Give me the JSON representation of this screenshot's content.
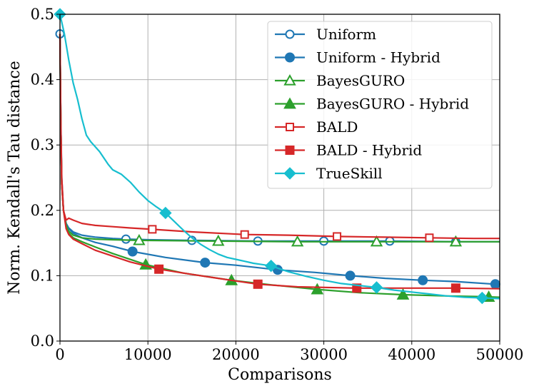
{
  "chart_data": {
    "type": "line",
    "xlabel": "Comparisons",
    "ylabel": "Norm. Kendall's Tau distance",
    "xlim": [
      0,
      50000
    ],
    "ylim": [
      0.0,
      0.5
    ],
    "xticks": [
      0,
      10000,
      20000,
      30000,
      40000,
      50000
    ],
    "xtick_labels": [
      "0",
      "10000",
      "20000",
      "30000",
      "40000",
      "50000"
    ],
    "yticks": [
      0.0,
      0.1,
      0.2,
      0.3,
      0.4,
      0.5
    ],
    "ytick_labels": [
      "0.0",
      "0.1",
      "0.2",
      "0.3",
      "0.4",
      "0.5"
    ],
    "grid": true,
    "legend_position": "top-right",
    "series": [
      {
        "name": "Uniform",
        "color": "#1f77b4",
        "marker": "circle-open",
        "points": [
          [
            0,
            0.47
          ],
          [
            100,
            0.34
          ],
          [
            200,
            0.25
          ],
          [
            400,
            0.2
          ],
          [
            700,
            0.18
          ],
          [
            1000,
            0.173
          ],
          [
            1500,
            0.167
          ],
          [
            2500,
            0.162
          ],
          [
            4000,
            0.159
          ],
          [
            6000,
            0.157
          ],
          [
            7500,
            0.156
          ],
          [
            10000,
            0.155
          ],
          [
            15000,
            0.154
          ],
          [
            22500,
            0.153
          ],
          [
            30000,
            0.153
          ],
          [
            37500,
            0.153
          ],
          [
            45000,
            0.152
          ],
          [
            50000,
            0.152
          ]
        ],
        "markers_x": [
          0,
          7500,
          15000,
          22500,
          30000,
          37500,
          45000
        ]
      },
      {
        "name": "Uniform - Hybrid",
        "color": "#1f77b4",
        "marker": "circle-filled",
        "points": [
          [
            0,
            0.47
          ],
          [
            100,
            0.33
          ],
          [
            200,
            0.24
          ],
          [
            400,
            0.2
          ],
          [
            700,
            0.18
          ],
          [
            1000,
            0.172
          ],
          [
            1500,
            0.165
          ],
          [
            2500,
            0.158
          ],
          [
            4000,
            0.151
          ],
          [
            6000,
            0.145
          ],
          [
            8250,
            0.137
          ],
          [
            12000,
            0.128
          ],
          [
            16500,
            0.12
          ],
          [
            20000,
            0.116
          ],
          [
            24750,
            0.109
          ],
          [
            29000,
            0.105
          ],
          [
            33000,
            0.1
          ],
          [
            37000,
            0.096
          ],
          [
            41250,
            0.093
          ],
          [
            45000,
            0.091
          ],
          [
            49500,
            0.087
          ],
          [
            50000,
            0.086
          ]
        ],
        "markers_x": [
          8250,
          16500,
          24750,
          33000,
          41250,
          49500
        ]
      },
      {
        "name": "BayesGURO",
        "color": "#2ca02c",
        "marker": "triangle-open",
        "points": [
          [
            0,
            0.47
          ],
          [
            100,
            0.33
          ],
          [
            200,
            0.24
          ],
          [
            400,
            0.2
          ],
          [
            700,
            0.178
          ],
          [
            1000,
            0.168
          ],
          [
            1500,
            0.162
          ],
          [
            2500,
            0.158
          ],
          [
            4000,
            0.156
          ],
          [
            6000,
            0.155
          ],
          [
            9000,
            0.154
          ],
          [
            18000,
            0.153
          ],
          [
            27000,
            0.152
          ],
          [
            36000,
            0.152
          ],
          [
            45000,
            0.152
          ],
          [
            50000,
            0.152
          ]
        ],
        "markers_x": [
          9000,
          18000,
          27000,
          36000,
          45000
        ]
      },
      {
        "name": "BayesGURO - Hybrid",
        "color": "#2ca02c",
        "marker": "triangle-filled",
        "points": [
          [
            0,
            0.47
          ],
          [
            100,
            0.33
          ],
          [
            200,
            0.24
          ],
          [
            400,
            0.2
          ],
          [
            700,
            0.175
          ],
          [
            1000,
            0.165
          ],
          [
            1500,
            0.158
          ],
          [
            2500,
            0.152
          ],
          [
            4000,
            0.144
          ],
          [
            6000,
            0.134
          ],
          [
            9750,
            0.117
          ],
          [
            14000,
            0.104
          ],
          [
            19500,
            0.093
          ],
          [
            24000,
            0.086
          ],
          [
            29250,
            0.079
          ],
          [
            34000,
            0.074
          ],
          [
            39000,
            0.071
          ],
          [
            44000,
            0.069
          ],
          [
            48000,
            0.068
          ],
          [
            50000,
            0.067
          ]
        ],
        "markers_x": [
          9750,
          19500,
          29250,
          39000,
          48750
        ]
      },
      {
        "name": "BALD",
        "color": "#d62728",
        "marker": "square-open",
        "points": [
          [
            0,
            0.47
          ],
          [
            100,
            0.33
          ],
          [
            200,
            0.25
          ],
          [
            400,
            0.2
          ],
          [
            700,
            0.185
          ],
          [
            1000,
            0.188
          ],
          [
            1500,
            0.185
          ],
          [
            2500,
            0.18
          ],
          [
            4000,
            0.177
          ],
          [
            6000,
            0.175
          ],
          [
            8000,
            0.173
          ],
          [
            10500,
            0.171
          ],
          [
            15000,
            0.167
          ],
          [
            21000,
            0.163
          ],
          [
            26000,
            0.162
          ],
          [
            31500,
            0.16
          ],
          [
            37000,
            0.159
          ],
          [
            42000,
            0.158
          ],
          [
            47000,
            0.157
          ],
          [
            50000,
            0.157
          ]
        ],
        "markers_x": [
          10500,
          21000,
          31500,
          42000
        ]
      },
      {
        "name": "BALD - Hybrid",
        "color": "#d62728",
        "marker": "square-filled",
        "points": [
          [
            0,
            0.47
          ],
          [
            100,
            0.33
          ],
          [
            200,
            0.24
          ],
          [
            400,
            0.2
          ],
          [
            700,
            0.172
          ],
          [
            1000,
            0.163
          ],
          [
            1500,
            0.156
          ],
          [
            2500,
            0.149
          ],
          [
            4000,
            0.139
          ],
          [
            6000,
            0.13
          ],
          [
            8000,
            0.121
          ],
          [
            11250,
            0.11
          ],
          [
            15000,
            0.102
          ],
          [
            18000,
            0.096
          ],
          [
            22500,
            0.087
          ],
          [
            27000,
            0.083
          ],
          [
            33750,
            0.081
          ],
          [
            40000,
            0.081
          ],
          [
            45000,
            0.081
          ],
          [
            50000,
            0.08
          ]
        ],
        "markers_x": [
          11250,
          22500,
          33750,
          45000
        ]
      },
      {
        "name": "TrueSkill",
        "color": "#17becf",
        "marker": "diamond-filled",
        "points": [
          [
            0,
            0.5
          ],
          [
            500,
            0.47
          ],
          [
            1000,
            0.43
          ],
          [
            1500,
            0.395
          ],
          [
            2000,
            0.37
          ],
          [
            2500,
            0.34
          ],
          [
            3000,
            0.315
          ],
          [
            3500,
            0.305
          ],
          [
            4500,
            0.29
          ],
          [
            5500,
            0.27
          ],
          [
            6000,
            0.262
          ],
          [
            7000,
            0.255
          ],
          [
            8000,
            0.243
          ],
          [
            9000,
            0.228
          ],
          [
            10000,
            0.215
          ],
          [
            11000,
            0.205
          ],
          [
            12000,
            0.196
          ],
          [
            13000,
            0.183
          ],
          [
            14000,
            0.17
          ],
          [
            15000,
            0.158
          ],
          [
            16000,
            0.148
          ],
          [
            17000,
            0.14
          ],
          [
            18000,
            0.133
          ],
          [
            19000,
            0.128
          ],
          [
            20000,
            0.125
          ],
          [
            21000,
            0.122
          ],
          [
            22000,
            0.119
          ],
          [
            23000,
            0.117
          ],
          [
            24000,
            0.115
          ],
          [
            26000,
            0.106
          ],
          [
            28000,
            0.099
          ],
          [
            30000,
            0.093
          ],
          [
            32000,
            0.088
          ],
          [
            34000,
            0.085
          ],
          [
            36000,
            0.082
          ],
          [
            38000,
            0.078
          ],
          [
            40000,
            0.075
          ],
          [
            42000,
            0.072
          ],
          [
            44000,
            0.069
          ],
          [
            46000,
            0.067
          ],
          [
            48000,
            0.066
          ],
          [
            50000,
            0.065
          ]
        ],
        "markers_x": [
          0,
          12000,
          24000,
          36000,
          48000
        ]
      }
    ]
  }
}
